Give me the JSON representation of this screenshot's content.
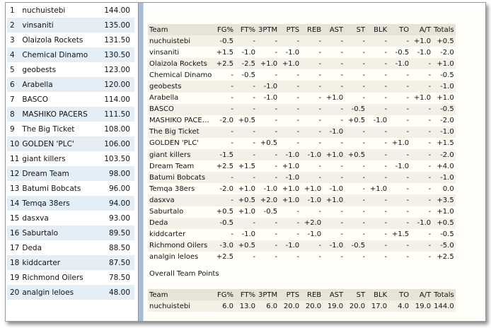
{
  "standings": [
    {
      "rank": "1",
      "team": "nuchuistebi",
      "points": "144.00"
    },
    {
      "rank": "2",
      "team": "vinsaniti",
      "points": "135.00"
    },
    {
      "rank": "3",
      "team": "Olaizola Rockets",
      "points": "131.50"
    },
    {
      "rank": "4",
      "team": "Chemical Dinamo",
      "points": "130.50"
    },
    {
      "rank": "5",
      "team": "geobests",
      "points": "123.00"
    },
    {
      "rank": "6",
      "team": "Arabella",
      "points": "120.00"
    },
    {
      "rank": "7",
      "team": "BASCO",
      "points": "114.00"
    },
    {
      "rank": "8",
      "team": "MASHIKO PACERS",
      "points": "111.50"
    },
    {
      "rank": "9",
      "team": "The Big Ticket",
      "points": "108.00"
    },
    {
      "rank": "10",
      "team": "GOLDEN 'PLC'",
      "points": "106.00"
    },
    {
      "rank": "11",
      "team": "giant killers",
      "points": "103.50"
    },
    {
      "rank": "12",
      "team": "Dream Team",
      "points": "98.00"
    },
    {
      "rank": "13",
      "team": "Batumi Bobcats",
      "points": "96.00"
    },
    {
      "rank": "14",
      "team": "Temqa 38ers",
      "points": "94.00"
    },
    {
      "rank": "15",
      "team": "dasxva",
      "points": "93.00"
    },
    {
      "rank": "16",
      "team": "Saburtalo",
      "points": "89.50"
    },
    {
      "rank": "17",
      "team": "Deda",
      "points": "88.50"
    },
    {
      "rank": "18",
      "team": "kiddcarter",
      "points": "87.50"
    },
    {
      "rank": "19",
      "team": "Richmond Oilers",
      "points": "78.50"
    },
    {
      "rank": "20",
      "team": "analgin leloes",
      "points": "48.00"
    }
  ],
  "changes": {
    "headers": [
      "Team",
      "FG%",
      "FT%",
      "3PTM",
      "PTS",
      "REB",
      "AST",
      "ST",
      "BLK",
      "TO",
      "A/T",
      "Totals"
    ],
    "rows": [
      [
        "nuchuistebi",
        "-0.5",
        "-",
        "-",
        "-",
        "-",
        "-",
        "-",
        "-",
        "-",
        "+1.0",
        "+0.5"
      ],
      [
        "vinsaniti",
        "+1.5",
        "-1.0",
        "-",
        "-1.0",
        "-",
        "-",
        "-",
        "-",
        "-0.5",
        "-1.0",
        "-2.0"
      ],
      [
        "Olaizola Rockets",
        "+2.5",
        "-2.5",
        "+1.0",
        "+1.0",
        "-",
        "-",
        "-",
        "-",
        "-1.0",
        "-",
        "+1.0"
      ],
      [
        "Chemical Dinamo",
        "-",
        "-0.5",
        "-",
        "-",
        "-",
        "-",
        "-",
        "-",
        "-",
        "-",
        "-0.5"
      ],
      [
        "geobests",
        "-",
        "-",
        "-1.0",
        "-",
        "-",
        "-",
        "-",
        "-",
        "-",
        "-",
        "-1.0"
      ],
      [
        "Arabella",
        "-",
        "-",
        "-1.0",
        "-",
        "-",
        "+1.0",
        "-",
        "-",
        "-",
        "+1.0",
        "+1.0"
      ],
      [
        "BASCO",
        "-",
        "-",
        "-",
        "-",
        "-",
        "-",
        "-0.5",
        "-",
        "-",
        "-",
        "-0.5"
      ],
      [
        "MASHIKO PACE…",
        "-2.0",
        "+0.5",
        "-",
        "-",
        "-",
        "-",
        "+0.5",
        "-1.0",
        "-",
        "-",
        "-2.0"
      ],
      [
        "The Big Ticket",
        "-",
        "-",
        "-",
        "-",
        "-",
        "-1.0",
        "-",
        "-",
        "-",
        "-",
        "-1.0"
      ],
      [
        "GOLDEN 'PLC'",
        "-",
        "-",
        "+0.5",
        "-",
        "-",
        "-",
        "-",
        "-",
        "+1.0",
        "-",
        "+1.5"
      ],
      [
        "giant killers",
        "-1.5",
        "-",
        "-",
        "-1.0",
        "-1.0",
        "+1.0",
        "+0.5",
        "-",
        "-",
        "-",
        "-2.0"
      ],
      [
        "Dream Team",
        "+2.5",
        "+1.5",
        "-",
        "+1.0",
        "-",
        "-",
        "-",
        "-",
        "-1.0",
        "-",
        "+4.0"
      ],
      [
        "Batumi Bobcats",
        "-",
        "-",
        "-",
        "-1.0",
        "-",
        "-",
        "-",
        "-",
        "-",
        "-",
        "-1.0"
      ],
      [
        "Temqa 38ers",
        "-2.0",
        "+1.0",
        "-1.0",
        "+1.0",
        "+1.0",
        "-1.0",
        "-",
        "+1.0",
        "-",
        "-",
        "0.0"
      ],
      [
        "dasxva",
        "-",
        "+0.5",
        "+2.0",
        "+1.0",
        "-1.0",
        "+1.0",
        "-",
        "-",
        "-",
        "-",
        "+3.5"
      ],
      [
        "Saburtalo",
        "+0.5",
        "+1.0",
        "-0.5",
        "-",
        "-",
        "-",
        "-",
        "-",
        "-",
        "-",
        "+1.0"
      ],
      [
        "Deda",
        "-0.5",
        "-",
        "-",
        "-",
        "+2.0",
        "-",
        "-",
        "-",
        "-",
        "-1.0",
        "+0.5"
      ],
      [
        "kiddcarter",
        "-",
        "-1.0",
        "-",
        "-",
        "-1.0",
        "-",
        "-",
        "-",
        "+1.5",
        "-",
        "-0.5"
      ],
      [
        "Richmond Oilers",
        "-3.0",
        "+0.5",
        "-",
        "-1.0",
        "-",
        "-1.0",
        "-0.5",
        "-",
        "-",
        "-",
        "-5.0"
      ],
      [
        "analgin leloes",
        "+2.5",
        "-",
        "-",
        "-",
        "-",
        "-",
        "-",
        "-",
        "-",
        "-",
        "+2.5"
      ]
    ]
  },
  "overall": {
    "title": "Overall Team Points",
    "headers": [
      "Team",
      "FG%",
      "FT%",
      "3PTM",
      "PTS",
      "REB",
      "AST",
      "ST",
      "BLK",
      "TO",
      "A/T",
      "Totals"
    ],
    "rows": [
      [
        "nuchuistebi",
        "6.0",
        "13.0",
        "6.0",
        "20.0",
        "20.0",
        "19.0",
        "20.0",
        "17.0",
        "4.0",
        "19.0",
        "144.0"
      ]
    ]
  }
}
